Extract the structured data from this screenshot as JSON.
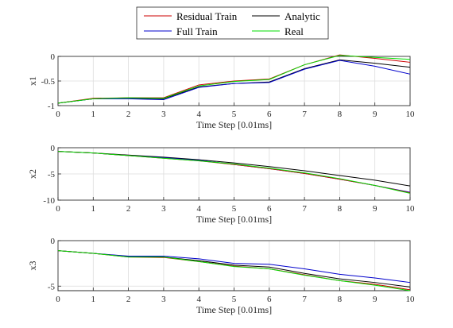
{
  "chart_data": [
    {
      "type": "line",
      "xlabel": "Time Step [0.01ms]",
      "ylabel": "x1",
      "xlim": [
        0,
        10
      ],
      "ylim": [
        -1,
        0
      ],
      "xticks": [
        0,
        1,
        2,
        3,
        4,
        5,
        6,
        7,
        8,
        9,
        10
      ],
      "yticks": [
        {
          "v": -1,
          "t": "-1"
        },
        {
          "v": -0.5,
          "t": "-0.5"
        },
        {
          "v": 0,
          "t": "0"
        }
      ],
      "grid": true,
      "x": [
        0,
        1,
        2,
        3,
        4,
        5,
        6,
        7,
        8,
        9,
        10
      ],
      "series": [
        {
          "name": "Analytic",
          "color": "#000000",
          "values": [
            -0.95,
            -0.86,
            -0.85,
            -0.86,
            -0.62,
            -0.55,
            -0.52,
            -0.25,
            -0.07,
            -0.14,
            -0.22
          ]
        },
        {
          "name": "Full Train",
          "color": "#0000cc",
          "values": [
            -0.95,
            -0.86,
            -0.86,
            -0.88,
            -0.63,
            -0.55,
            -0.53,
            -0.26,
            -0.08,
            -0.2,
            -0.36
          ]
        },
        {
          "name": "Residual Train",
          "color": "#cc0000",
          "values": [
            -0.95,
            -0.85,
            -0.84,
            -0.84,
            -0.58,
            -0.5,
            -0.46,
            -0.17,
            0.03,
            -0.04,
            -0.12
          ]
        },
        {
          "name": "Real",
          "color": "#00dd00",
          "values": [
            -0.95,
            -0.86,
            -0.84,
            -0.85,
            -0.6,
            -0.51,
            -0.47,
            -0.17,
            0.02,
            -0.02,
            -0.06
          ]
        }
      ]
    },
    {
      "type": "line",
      "xlabel": "Time Step [0.01ms]",
      "ylabel": "x2",
      "xlim": [
        0,
        10
      ],
      "ylim": [
        -10,
        0
      ],
      "xticks": [
        0,
        1,
        2,
        3,
        4,
        5,
        6,
        7,
        8,
        9,
        10
      ],
      "yticks": [
        {
          "v": -10,
          "t": "-10"
        },
        {
          "v": -5,
          "t": "-5"
        },
        {
          "v": 0,
          "t": "0"
        }
      ],
      "grid": true,
      "x": [
        0,
        1,
        2,
        3,
        4,
        5,
        6,
        7,
        8,
        9,
        10
      ],
      "series": [
        {
          "name": "Analytic",
          "color": "#000000",
          "values": [
            -0.7,
            -1.0,
            -1.4,
            -1.8,
            -2.3,
            -2.9,
            -3.6,
            -4.4,
            -5.3,
            -6.2,
            -7.3
          ]
        },
        {
          "name": "Full Train",
          "color": "#0000cc",
          "values": [
            -0.7,
            -1.0,
            -1.5,
            -1.9,
            -2.4,
            -3.2,
            -4.0,
            -4.9,
            -6.0,
            -7.2,
            -8.5
          ]
        },
        {
          "name": "Residual Train",
          "color": "#cc0000",
          "values": [
            -0.7,
            -1.0,
            -1.5,
            -2.0,
            -2.5,
            -3.2,
            -4.0,
            -4.9,
            -6.0,
            -7.2,
            -8.6
          ]
        },
        {
          "name": "Real",
          "color": "#00dd00",
          "values": [
            -0.7,
            -1.0,
            -1.5,
            -2.0,
            -2.5,
            -3.1,
            -3.9,
            -4.8,
            -5.9,
            -7.2,
            -8.7
          ]
        }
      ]
    },
    {
      "type": "line",
      "xlabel": "Time Step [0.01ms]",
      "ylabel": "x3",
      "xlim": [
        0,
        10
      ],
      "ylim": [
        -5.5,
        0
      ],
      "xticks": [
        0,
        1,
        2,
        3,
        4,
        5,
        6,
        7,
        8,
        9,
        10
      ],
      "yticks": [
        {
          "v": -5,
          "t": "-5"
        },
        {
          "v": 0,
          "t": "0"
        }
      ],
      "grid": true,
      "x": [
        0,
        1,
        2,
        3,
        4,
        5,
        6,
        7,
        8,
        9,
        10
      ],
      "series": [
        {
          "name": "Analytic",
          "color": "#000000",
          "values": [
            -1.1,
            -1.4,
            -1.75,
            -1.8,
            -2.2,
            -2.7,
            -2.9,
            -3.6,
            -4.2,
            -4.6,
            -5.1
          ]
        },
        {
          "name": "Full Train",
          "color": "#0000cc",
          "values": [
            -1.1,
            -1.4,
            -1.7,
            -1.7,
            -2.0,
            -2.5,
            -2.6,
            -3.1,
            -3.7,
            -4.1,
            -4.6
          ]
        },
        {
          "name": "Residual Train",
          "color": "#cc0000",
          "values": [
            -1.1,
            -1.4,
            -1.8,
            -1.85,
            -2.3,
            -2.8,
            -3.1,
            -3.75,
            -4.4,
            -4.8,
            -5.4
          ]
        },
        {
          "name": "Real",
          "color": "#00dd00",
          "values": [
            -1.1,
            -1.4,
            -1.8,
            -1.8,
            -2.3,
            -2.85,
            -3.1,
            -3.8,
            -4.4,
            -4.9,
            -5.5
          ]
        }
      ]
    }
  ],
  "legend": {
    "placement": "top",
    "entries": [
      {
        "name": "Residual Train",
        "color": "#cc0000"
      },
      {
        "name": "Analytic",
        "color": "#000000"
      },
      {
        "name": "Full Train",
        "color": "#0000cc"
      },
      {
        "name": "Real",
        "color": "#00dd00"
      }
    ]
  }
}
